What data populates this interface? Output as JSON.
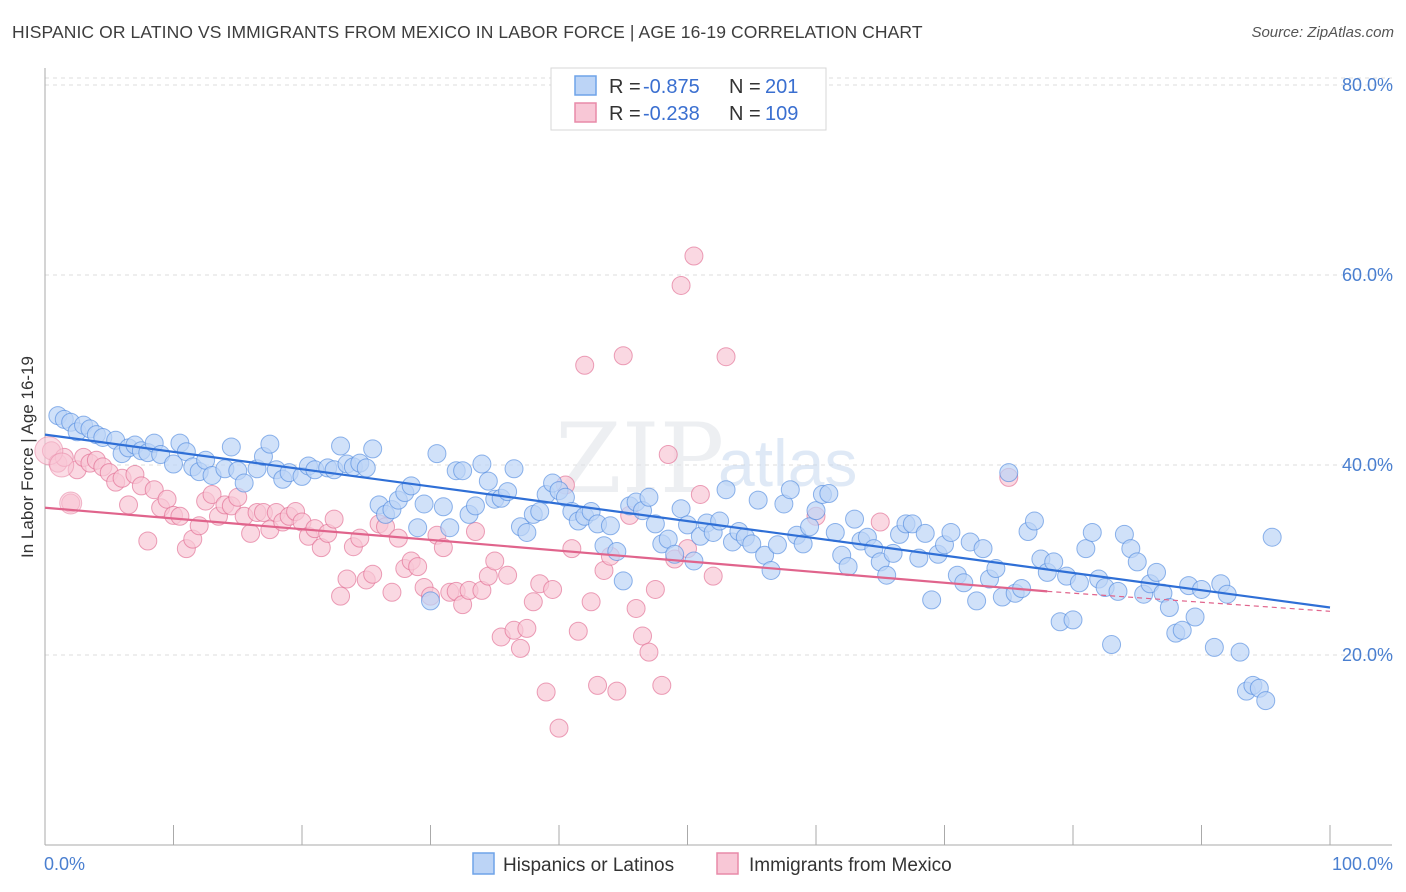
{
  "header": {
    "title": "HISPANIC OR LATINO VS IMMIGRANTS FROM MEXICO IN LABOR FORCE | AGE 16-19 CORRELATION CHART",
    "source": "Source: ZipAtlas.com"
  },
  "watermark": {
    "zip": "ZIP",
    "atlas": "atlas"
  },
  "legend": {
    "rows": [
      {
        "r_label": "R =",
        "r_value": "-0.875",
        "n_label": "N =",
        "n_value": "201",
        "color": "#6fa3e8",
        "fill": "#bcd4f6"
      },
      {
        "r_label": "R =",
        "r_value": "-0.238",
        "n_label": "N =",
        "n_value": "109",
        "color": "#e88aa8",
        "fill": "#f8c7d6"
      }
    ]
  },
  "bottom_legend": {
    "items": [
      {
        "label": "Hispanics or Latinos",
        "color": "#6fa3e8",
        "fill": "#bcd4f6"
      },
      {
        "label": "Immigrants from Mexico",
        "color": "#e88aa8",
        "fill": "#f8c7d6"
      }
    ]
  },
  "chart_data": {
    "type": "scatter",
    "title": "HISPANIC OR LATINO VS IMMIGRANTS FROM MEXICO IN LABOR FORCE | AGE 16-19 CORRELATION CHART",
    "xlabel": "",
    "ylabel": "In Labor Force | Age 16-19",
    "xlim": [
      0,
      100
    ],
    "ylim": [
      0,
      80
    ],
    "x_tick_labels": [
      "0.0%",
      "100.0%"
    ],
    "y_ticks": [
      20,
      40,
      60,
      80
    ],
    "y_tick_labels": [
      "20.0%",
      "40.0%",
      "60.0%",
      "80.0%"
    ],
    "grid": "horizontal dashed",
    "legend_position": "top-center",
    "series": [
      {
        "name": "Hispanics or Latinos",
        "color": "#4a86dd",
        "fill": "#bcd4f6",
        "trend": {
          "x": [
            0,
            100
          ],
          "y": [
            43.2,
            25.0
          ]
        },
        "points": [
          [
            1,
            45.2
          ],
          [
            1.5,
            44.8
          ],
          [
            2,
            44.5
          ],
          [
            2.5,
            43.5
          ],
          [
            3,
            44.2
          ],
          [
            3.5,
            43.8
          ],
          [
            4,
            43.2
          ],
          [
            4.5,
            42.9
          ],
          [
            5.5,
            42.6
          ],
          [
            6,
            41.2
          ],
          [
            6.5,
            41.8
          ],
          [
            7,
            42.1
          ],
          [
            7.5,
            41.5
          ],
          [
            8,
            41.3
          ],
          [
            8.5,
            42.3
          ],
          [
            9,
            41.1
          ],
          [
            10,
            40.1
          ],
          [
            10.5,
            42.3
          ],
          [
            11,
            41.4
          ],
          [
            11.5,
            39.8
          ],
          [
            12,
            39.3
          ],
          [
            12.5,
            40.5
          ],
          [
            13,
            38.9
          ],
          [
            14,
            39.6
          ],
          [
            14.5,
            41.9
          ],
          [
            15,
            39.4
          ],
          [
            15.5,
            38.1
          ],
          [
            16.5,
            39.6
          ],
          [
            17,
            40.9
          ],
          [
            17.5,
            42.2
          ],
          [
            18,
            39.5
          ],
          [
            18.5,
            38.5
          ],
          [
            19,
            39.2
          ],
          [
            20,
            38.8
          ],
          [
            20.5,
            39.9
          ],
          [
            21,
            39.5
          ],
          [
            22,
            39.7
          ],
          [
            22.5,
            39.5
          ],
          [
            23,
            42
          ],
          [
            23.5,
            40.1
          ],
          [
            24,
            39.8
          ],
          [
            24.5,
            40.2
          ],
          [
            25,
            39.7
          ],
          [
            25.5,
            41.7
          ],
          [
            26,
            35.8
          ],
          [
            26.5,
            34.8
          ],
          [
            27,
            35.3
          ],
          [
            27.5,
            36.3
          ],
          [
            28,
            37.1
          ],
          [
            28.5,
            37.8
          ],
          [
            29,
            33.4
          ],
          [
            29.5,
            35.9
          ],
          [
            30,
            25.7
          ],
          [
            30.5,
            41.2
          ],
          [
            31,
            35.6
          ],
          [
            31.5,
            33.4
          ],
          [
            32,
            39.4
          ],
          [
            32.5,
            39.4
          ],
          [
            33,
            34.8
          ],
          [
            33.5,
            35.7
          ],
          [
            34,
            40.1
          ],
          [
            34.5,
            38.3
          ],
          [
            35,
            36.4
          ],
          [
            35.5,
            36.5
          ],
          [
            36,
            37.2
          ],
          [
            36.5,
            39.6
          ],
          [
            37,
            33.5
          ],
          [
            37.5,
            32.9
          ],
          [
            38,
            34.8
          ],
          [
            38.5,
            35.1
          ],
          [
            39,
            36.9
          ],
          [
            39.5,
            38.1
          ],
          [
            40,
            37.3
          ],
          [
            40.5,
            36.6
          ],
          [
            41,
            35.1
          ],
          [
            41.5,
            34.1
          ],
          [
            42,
            34.6
          ],
          [
            42.5,
            35.1
          ],
          [
            43,
            33.8
          ],
          [
            43.5,
            31.5
          ],
          [
            44,
            33.6
          ],
          [
            44.5,
            30.9
          ],
          [
            45,
            27.8
          ],
          [
            45.5,
            35.7
          ],
          [
            46,
            36.1
          ],
          [
            46.5,
            35.2
          ],
          [
            47,
            36.6
          ],
          [
            47.5,
            33.8
          ],
          [
            48,
            31.7
          ],
          [
            48.5,
            32.2
          ],
          [
            49,
            30.6
          ],
          [
            49.5,
            35.4
          ],
          [
            50,
            33.7
          ],
          [
            50.5,
            29.9
          ],
          [
            51,
            32.5
          ],
          [
            51.5,
            33.9
          ],
          [
            52,
            32.9
          ],
          [
            52.5,
            34.1
          ],
          [
            53,
            37.4
          ],
          [
            53.5,
            31.9
          ],
          [
            54,
            33
          ],
          [
            54.5,
            32.4
          ],
          [
            55,
            31.7
          ],
          [
            55.5,
            36.3
          ],
          [
            56,
            30.5
          ],
          [
            56.5,
            28.9
          ],
          [
            57,
            31.6
          ],
          [
            57.5,
            35.9
          ],
          [
            58,
            37.4
          ],
          [
            58.5,
            32.6
          ],
          [
            59,
            31.7
          ],
          [
            59.5,
            33.5
          ],
          [
            60,
            35.2
          ],
          [
            60.5,
            36.9
          ],
          [
            61,
            37
          ],
          [
            61.5,
            32.9
          ],
          [
            62,
            30.5
          ],
          [
            62.5,
            29.3
          ],
          [
            63,
            34.3
          ],
          [
            63.5,
            32
          ],
          [
            64,
            32.4
          ],
          [
            64.5,
            31.2
          ],
          [
            65,
            29.8
          ],
          [
            65.5,
            28.4
          ],
          [
            66,
            30.7
          ],
          [
            66.5,
            32.7
          ],
          [
            67,
            33.8
          ],
          [
            67.5,
            33.8
          ],
          [
            68,
            30.2
          ],
          [
            68.5,
            32.8
          ],
          [
            69,
            25.8
          ],
          [
            69.5,
            30.6
          ],
          [
            70,
            31.6
          ],
          [
            70.5,
            32.9
          ],
          [
            71,
            28.4
          ],
          [
            71.5,
            27.6
          ],
          [
            72,
            31.9
          ],
          [
            72.5,
            25.7
          ],
          [
            73,
            31.2
          ],
          [
            73.5,
            28
          ],
          [
            74,
            29.1
          ],
          [
            74.5,
            26.1
          ],
          [
            75,
            39.2
          ],
          [
            75.5,
            26.5
          ],
          [
            76,
            27
          ],
          [
            76.5,
            33
          ],
          [
            77,
            34.1
          ],
          [
            77.5,
            30.1
          ],
          [
            78,
            28.7
          ],
          [
            78.5,
            29.8
          ],
          [
            79,
            23.5
          ],
          [
            79.5,
            28.3
          ],
          [
            80,
            23.7
          ],
          [
            80.5,
            27.6
          ],
          [
            81,
            31.2
          ],
          [
            81.5,
            32.9
          ],
          [
            82,
            28
          ],
          [
            82.5,
            27.1
          ],
          [
            83,
            21.1
          ],
          [
            83.5,
            26.7
          ],
          [
            84,
            32.7
          ],
          [
            84.5,
            31.2
          ],
          [
            85,
            29.8
          ],
          [
            85.5,
            26.4
          ],
          [
            86,
            27.5
          ],
          [
            86.5,
            28.7
          ],
          [
            87,
            26.5
          ],
          [
            87.5,
            25
          ],
          [
            88,
            22.3
          ],
          [
            88.5,
            22.6
          ],
          [
            89,
            27.3
          ],
          [
            89.5,
            24
          ],
          [
            90,
            26.9
          ],
          [
            91,
            20.8
          ],
          [
            91.5,
            27.5
          ],
          [
            92,
            26.4
          ],
          [
            93,
            20.3
          ],
          [
            93.5,
            16.2
          ],
          [
            94,
            16.8
          ],
          [
            94.5,
            16.5
          ],
          [
            95,
            15.2
          ],
          [
            95.5,
            32.4
          ]
        ]
      },
      {
        "name": "Immigrants from Mexico",
        "color": "#e0648c",
        "fill": "#f8c7d6",
        "trend": {
          "x": [
            0,
            78
          ],
          "y": [
            35.5,
            26.7
          ]
        },
        "trend_dashed": {
          "x": [
            78,
            100
          ],
          "y": [
            26.7,
            24.6
          ]
        },
        "points": [
          [
            0.5,
            41.5
          ],
          [
            1,
            40.2
          ],
          [
            1.5,
            40.8
          ],
          [
            2,
            36
          ],
          [
            2.5,
            39.5
          ],
          [
            3,
            40.8
          ],
          [
            3.5,
            40.2
          ],
          [
            4,
            40.5
          ],
          [
            4.5,
            39.8
          ],
          [
            5,
            39.2
          ],
          [
            5.5,
            38.2
          ],
          [
            6,
            38.6
          ],
          [
            6.5,
            35.8
          ],
          [
            7,
            39
          ],
          [
            7.5,
            37.8
          ],
          [
            8,
            32
          ],
          [
            8.5,
            37.4
          ],
          [
            9,
            35.5
          ],
          [
            9.5,
            36.4
          ],
          [
            10,
            34.7
          ],
          [
            10.5,
            34.6
          ],
          [
            11,
            31.2
          ],
          [
            11.5,
            32.2
          ],
          [
            12,
            33.6
          ],
          [
            12.5,
            36.2
          ],
          [
            13,
            36.9
          ],
          [
            13.5,
            34.6
          ],
          [
            14,
            35.8
          ],
          [
            14.5,
            35.7
          ],
          [
            15,
            36.6
          ],
          [
            15.5,
            34.6
          ],
          [
            16,
            32.8
          ],
          [
            16.5,
            35
          ],
          [
            17,
            35
          ],
          [
            17.5,
            33.2
          ],
          [
            18,
            35
          ],
          [
            18.5,
            34
          ],
          [
            19,
            34.6
          ],
          [
            19.5,
            35.1
          ],
          [
            20,
            34
          ],
          [
            20.5,
            32.5
          ],
          [
            21,
            33.3
          ],
          [
            21.5,
            31.3
          ],
          [
            22,
            32.8
          ],
          [
            22.5,
            34.3
          ],
          [
            23,
            26.2
          ],
          [
            23.5,
            28
          ],
          [
            24,
            31.4
          ],
          [
            24.5,
            32.3
          ],
          [
            25,
            27.9
          ],
          [
            25.5,
            28.5
          ],
          [
            26,
            33.8
          ],
          [
            26.5,
            33.5
          ],
          [
            27,
            26.6
          ],
          [
            27.5,
            32.3
          ],
          [
            28,
            29.1
          ],
          [
            28.5,
            29.9
          ],
          [
            29,
            29.3
          ],
          [
            29.5,
            27.1
          ],
          [
            30,
            26.2
          ],
          [
            30.5,
            32.6
          ],
          [
            31,
            31.3
          ],
          [
            31.5,
            26.6
          ],
          [
            32,
            26.7
          ],
          [
            32.5,
            25.3
          ],
          [
            33,
            26.8
          ],
          [
            33.5,
            33
          ],
          [
            34,
            26.8
          ],
          [
            34.5,
            28.3
          ],
          [
            35,
            29.9
          ],
          [
            35.5,
            21.9
          ],
          [
            36,
            28.4
          ],
          [
            36.5,
            22.6
          ],
          [
            37,
            20.7
          ],
          [
            37.5,
            22.8
          ],
          [
            38,
            25.6
          ],
          [
            38.5,
            27.5
          ],
          [
            39,
            16.1
          ],
          [
            39.5,
            26.9
          ],
          [
            40,
            12.3
          ],
          [
            40.5,
            37.9
          ],
          [
            41,
            31.2
          ],
          [
            41.5,
            22.5
          ],
          [
            42,
            50.5
          ],
          [
            42.5,
            25.6
          ],
          [
            43,
            16.8
          ],
          [
            43.5,
            28.9
          ],
          [
            44,
            30.4
          ],
          [
            44.5,
            16.2
          ],
          [
            45,
            51.5
          ],
          [
            45.5,
            34.7
          ],
          [
            46,
            24.9
          ],
          [
            46.5,
            22
          ],
          [
            47,
            20.3
          ],
          [
            47.5,
            26.9
          ],
          [
            48,
            16.8
          ],
          [
            48.5,
            41.1
          ],
          [
            49,
            30.1
          ],
          [
            49.5,
            58.9
          ],
          [
            50,
            31.2
          ],
          [
            50.5,
            62
          ],
          [
            51,
            36.9
          ],
          [
            52,
            28.3
          ],
          [
            53,
            51.4
          ],
          [
            60,
            34.6
          ],
          [
            65,
            34
          ],
          [
            75,
            38.7
          ]
        ]
      }
    ]
  }
}
